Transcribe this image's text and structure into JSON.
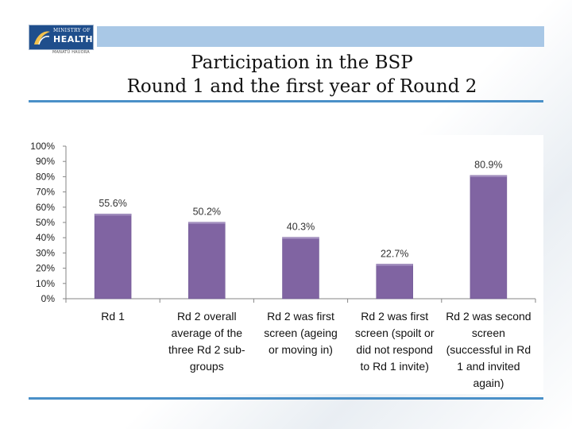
{
  "logo": {
    "line1": "MINISTRY OF",
    "line2": "HEALTH",
    "line3": "MANATŪ HAUORA"
  },
  "title": {
    "line1": "Participation in the BSP",
    "line2": "Round 1 and the first year of Round 2"
  },
  "colors": {
    "header_band": "#a9c8e6",
    "rule": "#4a90c8",
    "bar": "#8064a2"
  },
  "chart_data": {
    "type": "bar",
    "categories": [
      [
        "Rd 1"
      ],
      [
        "Rd 2 overall",
        "average of the",
        "three Rd 2 sub-",
        "groups"
      ],
      [
        "Rd 2 was first",
        "screen (ageing",
        "or moving in)"
      ],
      [
        "Rd 2 was first",
        "screen (spoilt or",
        "did not respond",
        "to Rd 1 invite)"
      ],
      [
        "Rd 2 was second",
        "screen",
        "(successful in Rd",
        "1 and invited",
        "again)"
      ]
    ],
    "values": [
      55.6,
      50.2,
      40.3,
      22.7,
      80.9
    ],
    "data_labels": [
      "55.6%",
      "50.2%",
      "40.3%",
      "22.7%",
      "80.9%"
    ],
    "y_ticks": [
      "0%",
      "10%",
      "20%",
      "30%",
      "40%",
      "50%",
      "60%",
      "70%",
      "80%",
      "90%",
      "100%"
    ],
    "ylim": [
      0,
      100
    ],
    "grid": false,
    "legend": "none"
  }
}
